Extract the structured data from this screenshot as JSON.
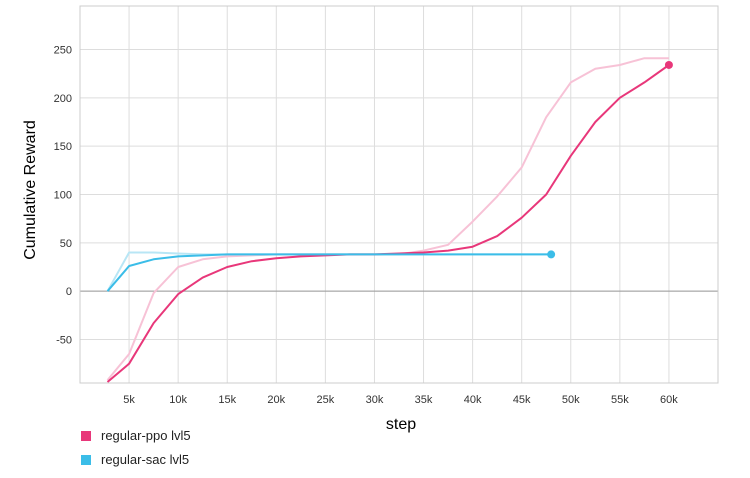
{
  "chart_data": {
    "type": "line",
    "xlabel": "step",
    "ylabel": "Cumulative Reward",
    "xlim": [
      0,
      65000
    ],
    "ylim": [
      -95,
      295
    ],
    "x_ticks": [
      5000,
      10000,
      15000,
      20000,
      25000,
      30000,
      35000,
      40000,
      45000,
      50000,
      55000,
      60000
    ],
    "x_tick_labels": [
      "5k",
      "10k",
      "15k",
      "20k",
      "25k",
      "30k",
      "35k",
      "40k",
      "45k",
      "50k",
      "55k",
      "60k"
    ],
    "y_ticks": [
      -50,
      0,
      50,
      100,
      150,
      200,
      250
    ],
    "y_tick_labels": [
      "-50",
      "0",
      "50",
      "100",
      "150",
      "200",
      "250"
    ],
    "grid": true,
    "legend_position": "bottom-left",
    "series": [
      {
        "name": "regular-ppo lvl5",
        "color": "#e8377a",
        "raw_color": "#f7c2d6",
        "x": [
          2800,
          5000,
          7500,
          10000,
          12500,
          15000,
          17500,
          20000,
          22500,
          25000,
          27500,
          30000,
          32500,
          35000,
          37500,
          40000,
          42500,
          45000,
          47500,
          50000,
          52500,
          55000,
          57500,
          60000
        ],
        "values": [
          -94,
          -75,
          -33,
          -3,
          14,
          25,
          31,
          34,
          36,
          37,
          38,
          38,
          39,
          40,
          42,
          46,
          57,
          76,
          100,
          140,
          175,
          200,
          216,
          234
        ],
        "raw_values": [
          -92,
          -65,
          -2,
          25,
          33,
          36,
          37,
          38,
          38,
          38,
          38,
          38,
          38,
          42,
          48,
          72,
          98,
          128,
          180,
          216,
          230,
          234,
          241,
          241
        ]
      },
      {
        "name": "regular-sac lvl5",
        "color": "#3bbde8",
        "raw_color": "#b8e6f5",
        "x": [
          2800,
          5000,
          7500,
          10000,
          12500,
          15000,
          17500,
          20000,
          22500,
          25000,
          27500,
          30000,
          32500,
          35000,
          37500,
          40000,
          42500,
          45000,
          47500,
          48000
        ],
        "values": [
          0,
          26,
          33,
          36,
          37,
          38,
          38,
          38,
          38,
          38,
          38,
          38,
          38,
          38,
          38,
          38,
          38,
          38,
          38,
          38
        ],
        "raw_values": [
          0,
          40,
          40,
          39,
          38,
          38,
          38,
          38,
          38,
          38,
          38,
          38,
          38,
          38,
          38,
          38,
          38,
          38,
          38,
          38
        ]
      }
    ]
  }
}
